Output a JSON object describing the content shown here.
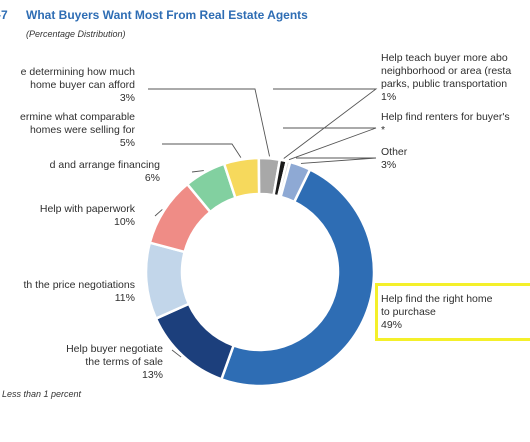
{
  "header": {
    "figure_number": "-7",
    "title": "What Buyers Want Most From Real Estate Agents",
    "subtitle": "(Percentage Distribution)"
  },
  "footnote": "Less than 1 percent",
  "chart_data": {
    "type": "pie",
    "donut": true,
    "title": "What Buyers Want Most From Real Estate Agents",
    "subtitle": "(Percentage Distribution)",
    "slices": [
      {
        "label": "Help find the right home to purchase",
        "value": 49,
        "value_text": "49%",
        "color": "#2e6db4",
        "label_lines": [
          "Help  find the right home",
          "to purchase"
        ]
      },
      {
        "label": "Help buyer negotiate the terms of sale",
        "value": 13,
        "value_text": "13%",
        "color": "#1c3f7c",
        "label_lines": [
          "Help buyer negotiate",
          "the terms of sale"
        ]
      },
      {
        "label": "Help with the price negotiations",
        "value": 11,
        "value_text": "11%",
        "color": "#c2d6ea",
        "label_lines": [
          "th the price negotiations"
        ]
      },
      {
        "label": "Help with paperwork",
        "value": 10,
        "value_text": "10%",
        "color": "#ef8c86",
        "label_lines": [
          "Help with paperwork"
        ]
      },
      {
        "label": "Help find and arrange financing",
        "value": 6,
        "value_text": "6%",
        "color": "#82d0a0",
        "label_lines": [
          "d and arrange financing"
        ]
      },
      {
        "label": "Help determine what comparable homes were selling for",
        "value": 5,
        "value_text": "5%",
        "color": "#f6d95c",
        "label_lines": [
          "ermine what comparable",
          "homes were selling for"
        ]
      },
      {
        "label": "Help with determining how much home buyer can afford",
        "value": 3,
        "value_text": "3%",
        "color": "#a8a8a8",
        "label_lines": [
          "e determining how much",
          "home buyer can afford"
        ]
      },
      {
        "label": "Help teach buyer more about neighborhood or area (restaurants, parks, public transportation)",
        "value": 1,
        "value_text": "1%",
        "color": "#1a1a1a",
        "label_lines": [
          "Help teach buyer more abo",
          "neighborhood or area (resta",
          "parks, public transportation"
        ]
      },
      {
        "label": "Help find renters for buyer's property",
        "value": 0.5,
        "value_text": "*",
        "color": "#d9d9d9",
        "label_lines": [
          "Help find renters for buyer's"
        ]
      },
      {
        "label": "Other",
        "value": 3,
        "value_text": "3%",
        "color": "#8ea9d4",
        "label_lines": [
          "Other"
        ]
      }
    ]
  }
}
